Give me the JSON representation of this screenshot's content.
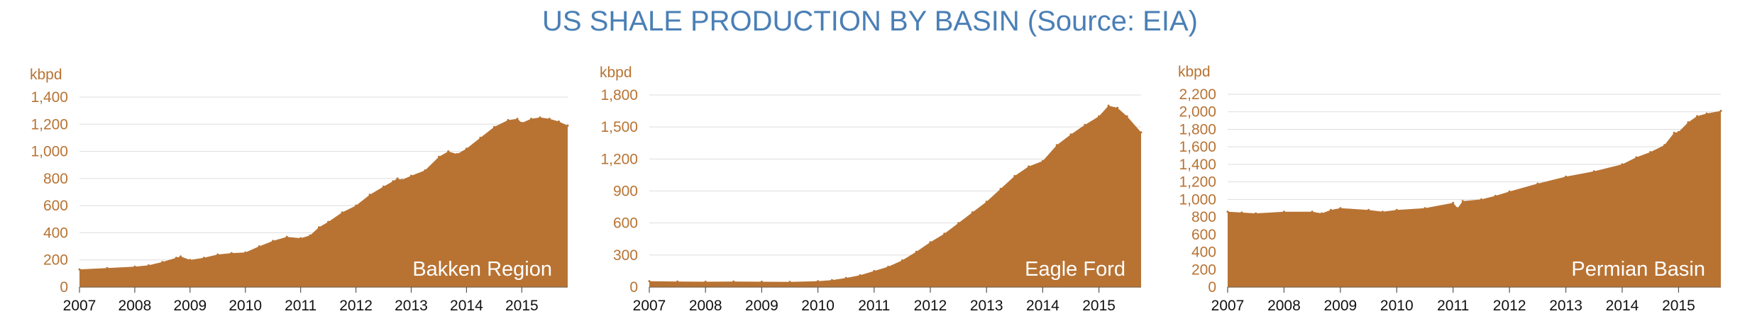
{
  "title": "US SHALE PRODUCTION BY BASIN (Source: EIA)",
  "colors": {
    "fill": "#b87333",
    "title": "#4a7fb5",
    "ytick": "#b87333",
    "xtick": "#111111",
    "grid": "#dddddd"
  },
  "chart_data": [
    {
      "type": "area",
      "label": "Bakken Region",
      "ylabel": "kbpd",
      "ylim": [
        0,
        1400
      ],
      "yticks": [
        0,
        200,
        400,
        600,
        800,
        1000,
        1200,
        1400
      ],
      "ytick_labels": [
        "0",
        "200",
        "400",
        "600",
        "800",
        "1,000",
        "1,200",
        "1,400"
      ],
      "xlim": [
        2007,
        2015.83
      ],
      "xticks": [
        2007,
        2008,
        2009,
        2010,
        2011,
        2012,
        2013,
        2014,
        2015
      ],
      "xtick_labels": [
        "2007",
        "2008",
        "2009",
        "2010",
        "2011",
        "2012",
        "2013",
        "2014",
        "2015"
      ],
      "grid": true,
      "x": [
        2007,
        2007.5,
        2008,
        2008.25,
        2008.5,
        2008.75,
        2008.83,
        2009,
        2009.25,
        2009.5,
        2009.75,
        2010,
        2010.25,
        2010.5,
        2010.75,
        2011,
        2011.17,
        2011.33,
        2011.5,
        2011.75,
        2012,
        2012.25,
        2012.5,
        2012.67,
        2012.75,
        2012.83,
        2013,
        2013.25,
        2013.5,
        2013.67,
        2013.83,
        2014,
        2014.25,
        2014.5,
        2014.75,
        2014.92,
        2015,
        2015.17,
        2015.33,
        2015.5,
        2015.67,
        2015.83
      ],
      "values": [
        130,
        140,
        150,
        160,
        185,
        215,
        225,
        200,
        215,
        240,
        250,
        255,
        300,
        340,
        370,
        360,
        380,
        440,
        480,
        550,
        600,
        680,
        740,
        780,
        800,
        790,
        820,
        860,
        960,
        1000,
        980,
        1020,
        1100,
        1180,
        1230,
        1240,
        1210,
        1240,
        1250,
        1240,
        1220,
        1190
      ]
    },
    {
      "type": "area",
      "label": "Eagle Ford",
      "ylabel": "kbpd",
      "ylim": [
        0,
        1800
      ],
      "yticks": [
        0,
        300,
        600,
        900,
        1200,
        1500,
        1800
      ],
      "ytick_labels": [
        "0",
        "300",
        "600",
        "900",
        "1,200",
        "1,500",
        "1,800"
      ],
      "xlim": [
        2007,
        2015.75
      ],
      "xticks": [
        2007,
        2008,
        2009,
        2010,
        2011,
        2012,
        2013,
        2014,
        2015
      ],
      "xtick_labels": [
        "2007",
        "2008",
        "2009",
        "2010",
        "2011",
        "2012",
        "2013",
        "2014",
        "2015"
      ],
      "grid": true,
      "x": [
        2007,
        2007.5,
        2008,
        2008.5,
        2009,
        2009.5,
        2010,
        2010.25,
        2010.5,
        2010.75,
        2011,
        2011.25,
        2011.5,
        2011.75,
        2012,
        2012.25,
        2012.5,
        2012.75,
        2013,
        2013.25,
        2013.5,
        2013.75,
        2014,
        2014.25,
        2014.5,
        2014.75,
        2015,
        2015.17,
        2015.33,
        2015.5,
        2015.75
      ],
      "values": [
        55,
        52,
        50,
        52,
        50,
        48,
        55,
        65,
        85,
        110,
        150,
        190,
        250,
        330,
        420,
        500,
        600,
        700,
        800,
        920,
        1040,
        1130,
        1180,
        1330,
        1430,
        1520,
        1600,
        1700,
        1680,
        1600,
        1450
      ]
    },
    {
      "type": "area",
      "label": "Permian Basin",
      "ylabel": "kbpd",
      "ylim": [
        0,
        2200
      ],
      "yticks": [
        0,
        200,
        400,
        600,
        800,
        1000,
        1200,
        1400,
        1600,
        1800,
        2000,
        2200
      ],
      "ytick_labels": [
        "0",
        "200",
        "400",
        "600",
        "800",
        "1,000",
        "1,200",
        "1,400",
        "1,600",
        "1,800",
        "2,000",
        "2,200"
      ],
      "xlim": [
        2007,
        2015.75
      ],
      "xticks": [
        2007,
        2008,
        2009,
        2010,
        2011,
        2012,
        2013,
        2014,
        2015
      ],
      "xtick_labels": [
        "2007",
        "2008",
        "2009",
        "2010",
        "2011",
        "2012",
        "2013",
        "2014",
        "2015"
      ],
      "grid": true,
      "x": [
        2007,
        2007.25,
        2007.5,
        2008,
        2008.5,
        2008.67,
        2008.83,
        2009,
        2009.5,
        2009.75,
        2010,
        2010.5,
        2011,
        2011.08,
        2011.17,
        2011.5,
        2011.75,
        2012,
        2012.5,
        2013,
        2013.5,
        2014,
        2014.25,
        2014.5,
        2014.75,
        2014.92,
        2015,
        2015.17,
        2015.33,
        2015.5,
        2015.75
      ],
      "values": [
        860,
        850,
        840,
        860,
        860,
        840,
        880,
        900,
        880,
        860,
        880,
        900,
        960,
        900,
        980,
        1000,
        1040,
        1090,
        1180,
        1260,
        1320,
        1400,
        1480,
        1540,
        1620,
        1760,
        1770,
        1880,
        1950,
        1980,
        2010
      ]
    }
  ]
}
